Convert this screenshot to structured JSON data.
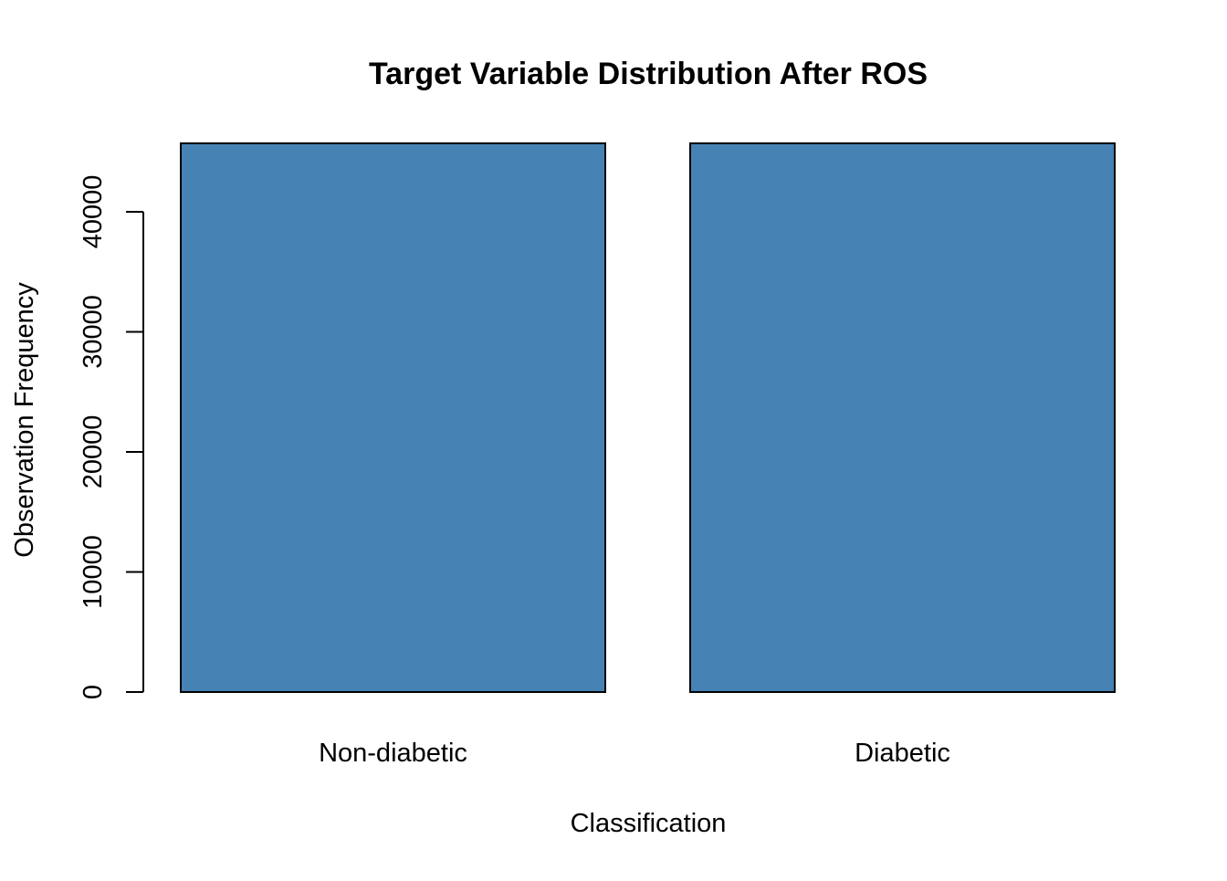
{
  "chart_data": {
    "type": "bar",
    "title": "Target Variable Distribution After ROS",
    "xlabel": "Classification",
    "ylabel": "Observation Frequency",
    "categories": [
      "Non-diabetic",
      "Diabetic"
    ],
    "values": [
      45700,
      45700
    ],
    "ylim": [
      0,
      45700
    ],
    "yticks": [
      "0",
      "10000",
      "20000",
      "30000",
      "40000"
    ],
    "bar_color": "#4682B4",
    "grid": false,
    "legend": "none"
  }
}
